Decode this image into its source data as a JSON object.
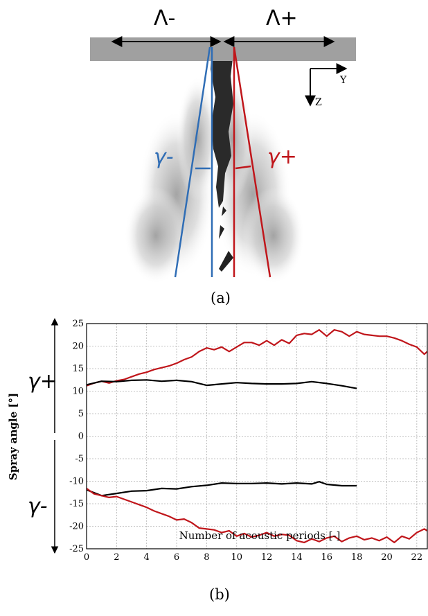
{
  "panel_a": {
    "caption": "(a)",
    "lambda_minus": "Λ-",
    "lambda_plus": "Λ+",
    "gamma_minus": "γ-",
    "gamma_plus": "γ+",
    "axis_y": "Y",
    "axis_z": "Z",
    "colors": {
      "minus": "#2f6db5",
      "plus": "#c0161b",
      "wall": "#a0a0a0"
    }
  },
  "panel_b": {
    "caption": "(b)",
    "gamma_plus": "γ+",
    "gamma_minus": "γ-"
  },
  "chart_data": {
    "type": "line",
    "xlabel": "Number of acoustic periods [-]",
    "ylabel": "Spray angle [°]",
    "xlim": [
      0,
      22.7
    ],
    "ylim": [
      -25,
      25
    ],
    "xticks": [
      "0",
      "2",
      "4",
      "6",
      "8",
      "10",
      "12",
      "14",
      "16",
      "18",
      "20",
      "22"
    ],
    "yticks": [
      "25",
      "20",
      "15",
      "10",
      "5",
      "0",
      "-5",
      "-10",
      "-15",
      "-20",
      "-25"
    ],
    "grid": true,
    "series": [
      {
        "color": "#c0161b",
        "x": [
          0,
          0.5,
          1,
          1.5,
          2,
          2.5,
          3,
          3.5,
          4,
          4.5,
          5,
          5.5,
          6,
          6.5,
          7,
          7.5,
          8,
          8.5,
          9,
          9.5,
          10,
          10.5,
          11,
          11.5,
          12,
          12.5,
          13,
          13.5,
          14,
          14.5,
          15,
          15.5,
          16,
          16.5,
          17,
          17.5,
          18,
          18.5,
          19,
          19.5,
          20,
          20.5,
          21,
          21.5,
          22,
          22.5,
          22.7
        ],
        "y": [
          11.2,
          11.8,
          12.2,
          11.8,
          12.3,
          12.6,
          13.2,
          13.8,
          14.2,
          14.8,
          15.2,
          15.6,
          16.2,
          17,
          17.6,
          18.8,
          19.6,
          19.2,
          19.8,
          18.8,
          19.8,
          20.8,
          20.8,
          20.2,
          21.2,
          20.2,
          21.4,
          20.6,
          22.4,
          22.8,
          22.6,
          23.6,
          22.2,
          23.6,
          23.2,
          22.2,
          23.2,
          22.6,
          22.4,
          22.2,
          22.2,
          21.8,
          21.2,
          20.4,
          19.8,
          18.2,
          18.8
        ]
      },
      {
        "color": "#000000",
        "x": [
          0,
          1,
          2,
          3,
          4,
          5,
          6,
          7,
          8,
          9,
          10,
          11,
          12,
          13,
          14,
          15,
          16,
          17,
          18
        ],
        "y": [
          11.4,
          12.2,
          12.1,
          12.4,
          12.5,
          12.2,
          12.4,
          12.1,
          11.3,
          11.6,
          11.9,
          11.7,
          11.6,
          11.6,
          11.7,
          12.1,
          11.7,
          11.2,
          10.6
        ]
      },
      {
        "color": "#000000",
        "x": [
          0,
          1,
          2,
          3,
          4,
          5,
          6,
          7,
          8,
          9,
          10,
          11,
          12,
          13,
          14,
          15,
          15.5,
          16,
          17,
          18
        ],
        "y": [
          -11.9,
          -13.2,
          -12.7,
          -12.2,
          -12.1,
          -11.6,
          -11.7,
          -11.2,
          -10.9,
          -10.4,
          -10.5,
          -10.5,
          -10.4,
          -10.6,
          -10.4,
          -10.6,
          -10.1,
          -10.7,
          -11,
          -11
        ]
      },
      {
        "color": "#c0161b",
        "x": [
          0,
          0.5,
          1,
          1.5,
          2,
          2.5,
          3,
          3.5,
          4,
          4.5,
          5,
          5.5,
          6,
          6.5,
          7,
          7.5,
          8,
          8.5,
          9,
          9.5,
          10,
          10.5,
          11,
          11.5,
          12,
          12.5,
          13,
          13.5,
          14,
          14.5,
          15,
          15.5,
          16,
          16.5,
          17,
          17.5,
          18,
          18.5,
          19,
          19.5,
          20,
          20.5,
          21,
          21.5,
          22,
          22.5,
          22.7
        ],
        "y": [
          -11.6,
          -12.8,
          -13.2,
          -13.6,
          -13.4,
          -14,
          -14.6,
          -15.2,
          -15.8,
          -16.6,
          -17.2,
          -17.8,
          -18.6,
          -18.4,
          -19.2,
          -20.4,
          -20.6,
          -20.8,
          -21.4,
          -21,
          -22.2,
          -21.6,
          -22.4,
          -22,
          -21.4,
          -22.2,
          -21.8,
          -22,
          -23.2,
          -23.6,
          -22.8,
          -23.4,
          -22.6,
          -22.2,
          -23.4,
          -22.6,
          -22.2,
          -23,
          -22.6,
          -23.2,
          -22.4,
          -23.6,
          -22.2,
          -22.8,
          -21.4,
          -20.6,
          -21
        ]
      }
    ]
  }
}
